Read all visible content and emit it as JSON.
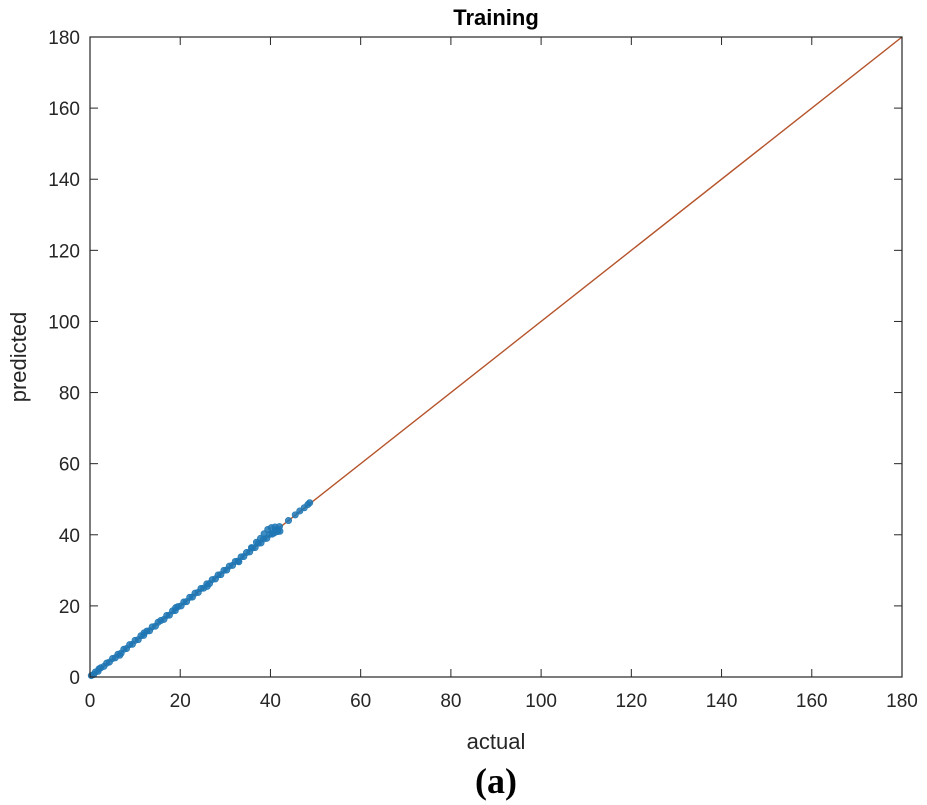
{
  "chart_data": {
    "type": "scatter",
    "title": "Training",
    "xlabel": "actual",
    "ylabel": "predicted",
    "xlim": [
      0,
      180
    ],
    "ylim": [
      0,
      180
    ],
    "xticks": [
      "0",
      "20",
      "40",
      "60",
      "80",
      "100",
      "120",
      "140",
      "160",
      "180"
    ],
    "yticks": [
      "0",
      "20",
      "40",
      "60",
      "80",
      "100",
      "120",
      "140",
      "160",
      "180"
    ],
    "grid": false,
    "panel_label": "(a)",
    "colors": {
      "points": "#1f77b4",
      "fit_line": "#b5532a"
    },
    "fit_line": {
      "x": [
        0,
        180
      ],
      "y": [
        0,
        180
      ]
    },
    "series": [
      {
        "points": [
          [
            0.3,
            0.4
          ],
          [
            0.8,
            0.7
          ],
          [
            1.2,
            1.4
          ],
          [
            1.8,
            1.6
          ],
          [
            2.4,
            2.6
          ],
          [
            3.1,
            3.0
          ],
          [
            3.7,
            3.9
          ],
          [
            4.3,
            4.2
          ],
          [
            5.0,
            5.2
          ],
          [
            5.6,
            5.4
          ],
          [
            6.2,
            6.4
          ],
          [
            6.9,
            6.7
          ],
          [
            7.5,
            7.8
          ],
          [
            8.1,
            8.0
          ],
          [
            8.8,
            9.1
          ],
          [
            9.4,
            9.2
          ],
          [
            10.0,
            10.3
          ],
          [
            10.7,
            10.5
          ],
          [
            11.3,
            11.6
          ],
          [
            11.9,
            11.7
          ],
          [
            12.6,
            12.9
          ],
          [
            13.2,
            13.0
          ],
          [
            13.8,
            14.1
          ],
          [
            14.5,
            14.3
          ],
          [
            15.1,
            15.4
          ],
          [
            15.7,
            15.9
          ],
          [
            16.4,
            16.2
          ],
          [
            17.0,
            17.3
          ],
          [
            17.6,
            17.4
          ],
          [
            18.3,
            18.6
          ],
          [
            18.9,
            18.7
          ],
          [
            19.5,
            19.8
          ],
          [
            20.2,
            20.0
          ],
          [
            20.8,
            21.1
          ],
          [
            21.4,
            21.2
          ],
          [
            22.1,
            22.4
          ],
          [
            22.7,
            22.5
          ],
          [
            23.3,
            23.6
          ],
          [
            24.0,
            23.8
          ],
          [
            24.6,
            24.9
          ],
          [
            25.2,
            25.0
          ],
          [
            25.9,
            26.2
          ],
          [
            26.5,
            26.3
          ],
          [
            27.1,
            27.4
          ],
          [
            27.8,
            27.6
          ],
          [
            28.4,
            28.7
          ],
          [
            29.0,
            28.8
          ],
          [
            29.7,
            30.0
          ],
          [
            30.3,
            30.1
          ],
          [
            30.9,
            31.2
          ],
          [
            31.6,
            31.4
          ],
          [
            32.2,
            32.5
          ],
          [
            32.8,
            32.6
          ],
          [
            33.5,
            33.8
          ],
          [
            34.1,
            33.9
          ],
          [
            34.7,
            35.0
          ],
          [
            35.4,
            35.2
          ],
          [
            36.0,
            36.3
          ],
          [
            36.6,
            36.4
          ],
          [
            37.3,
            37.6
          ],
          [
            37.9,
            37.7
          ],
          [
            38.5,
            38.8
          ],
          [
            39.2,
            39.0
          ],
          [
            39.8,
            40.1
          ],
          [
            40.4,
            40.2
          ],
          [
            41.1,
            41.4
          ],
          [
            41.7,
            41.5
          ],
          [
            37.8,
            39.0
          ],
          [
            38.6,
            40.3
          ],
          [
            39.4,
            41.5
          ],
          [
            40.2,
            42.0
          ],
          [
            41.0,
            42.2
          ],
          [
            42.0,
            42.3
          ],
          [
            40.8,
            40.5
          ],
          [
            41.6,
            40.9
          ],
          [
            42.1,
            41.0
          ],
          [
            35.8,
            36.4
          ],
          [
            36.9,
            37.9
          ],
          [
            44.0,
            44.0
          ],
          [
            45.5,
            45.6
          ],
          [
            46.5,
            46.7
          ],
          [
            47.5,
            47.6
          ],
          [
            48.3,
            48.5
          ],
          [
            48.7,
            49.0
          ],
          [
            2.0,
            2.3
          ],
          [
            6.6,
            6.1
          ],
          [
            12.0,
            12.4
          ],
          [
            19.0,
            19.5
          ],
          [
            26.0,
            25.5
          ],
          [
            33.0,
            32.4
          ]
        ]
      }
    ]
  }
}
